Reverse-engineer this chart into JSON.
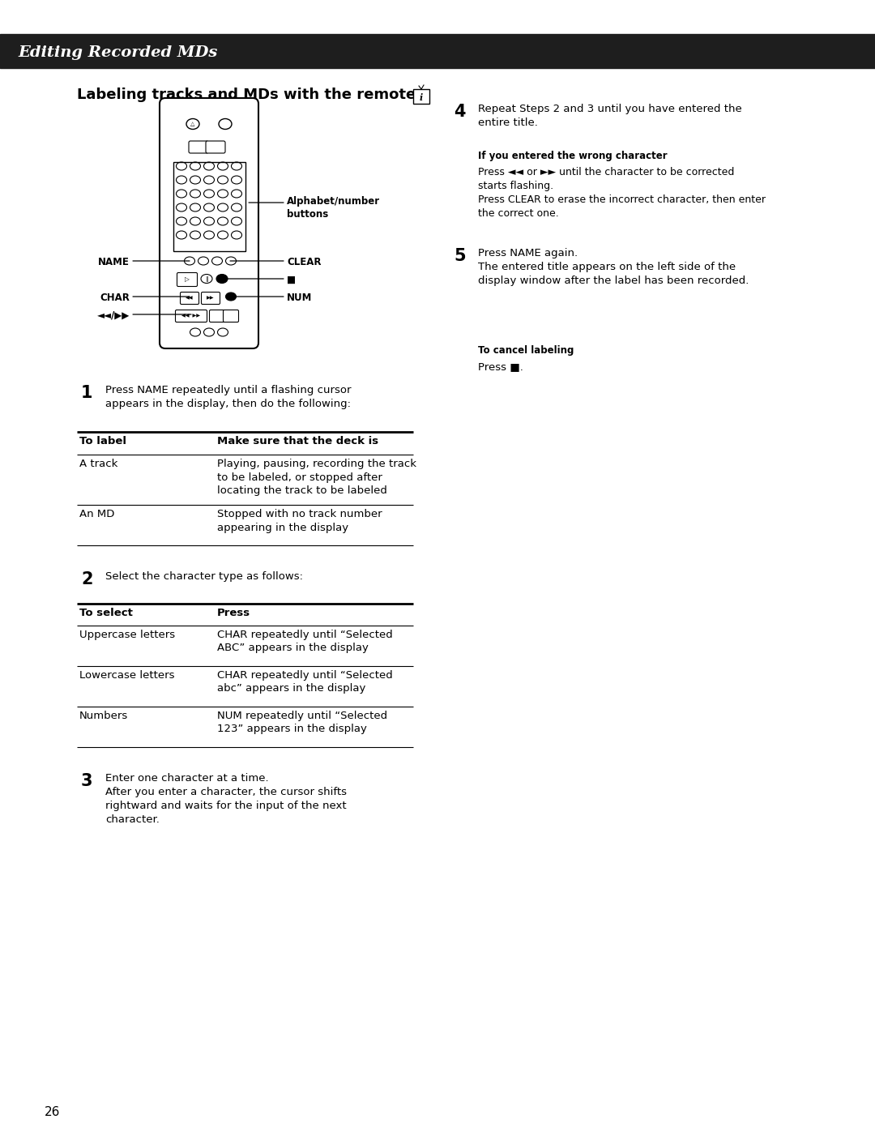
{
  "bg_color": "#ffffff",
  "header_bg": "#1e1e1e",
  "header_text": "Editing Recorded MDs",
  "header_text_color": "#ffffff",
  "page_number": "26",
  "section_title": "Labeling tracks and MDs with the remote",
  "step1_num": "1",
  "step1_text": "Press NAME repeatedly until a flashing cursor\nappears in the display, then do the following:",
  "step2_num": "2",
  "step2_text": "Select the character type as follows:",
  "step3_num": "3",
  "step3_text": "Enter one character at a time.\nAfter you enter a character, the cursor shifts\nrightward and waits for the input of the next\ncharacter.",
  "step4_num": "4",
  "step4_text": "Repeat Steps 2 and 3 until you have entered the\nentire title.",
  "step4_sub_title": "If you entered the wrong character",
  "step4_sub_text": "Press ◄◄ or ►► until the character to be corrected\nstarts flashing.\nPress CLEAR to erase the incorrect character, then enter\nthe correct one.",
  "step5_num": "5",
  "step5_text": "Press NAME again.\nThe entered title appears on the left side of the\ndisplay window after the label has been recorded.",
  "cancel_title": "To cancel labeling",
  "cancel_text": "Press ■.",
  "table1_headers": [
    "To label",
    "Make sure that the deck is"
  ],
  "table1_rows": [
    [
      "A track",
      "Playing, pausing, recording the track\nto be labeled, or stopped after\nlocating the track to be labeled"
    ],
    [
      "An MD",
      "Stopped with no track number\nappearing in the display"
    ]
  ],
  "table2_headers": [
    "To select",
    "Press"
  ],
  "table2_rows": [
    [
      "Uppercase letters",
      "CHAR repeatedly until “Selected\nABC” appears in the display"
    ],
    [
      "Lowercase letters",
      "CHAR repeatedly until “Selected\nabc” appears in the display"
    ],
    [
      "Numbers",
      "NUM repeatedly until “Selected\n123” appears in the display"
    ]
  ]
}
